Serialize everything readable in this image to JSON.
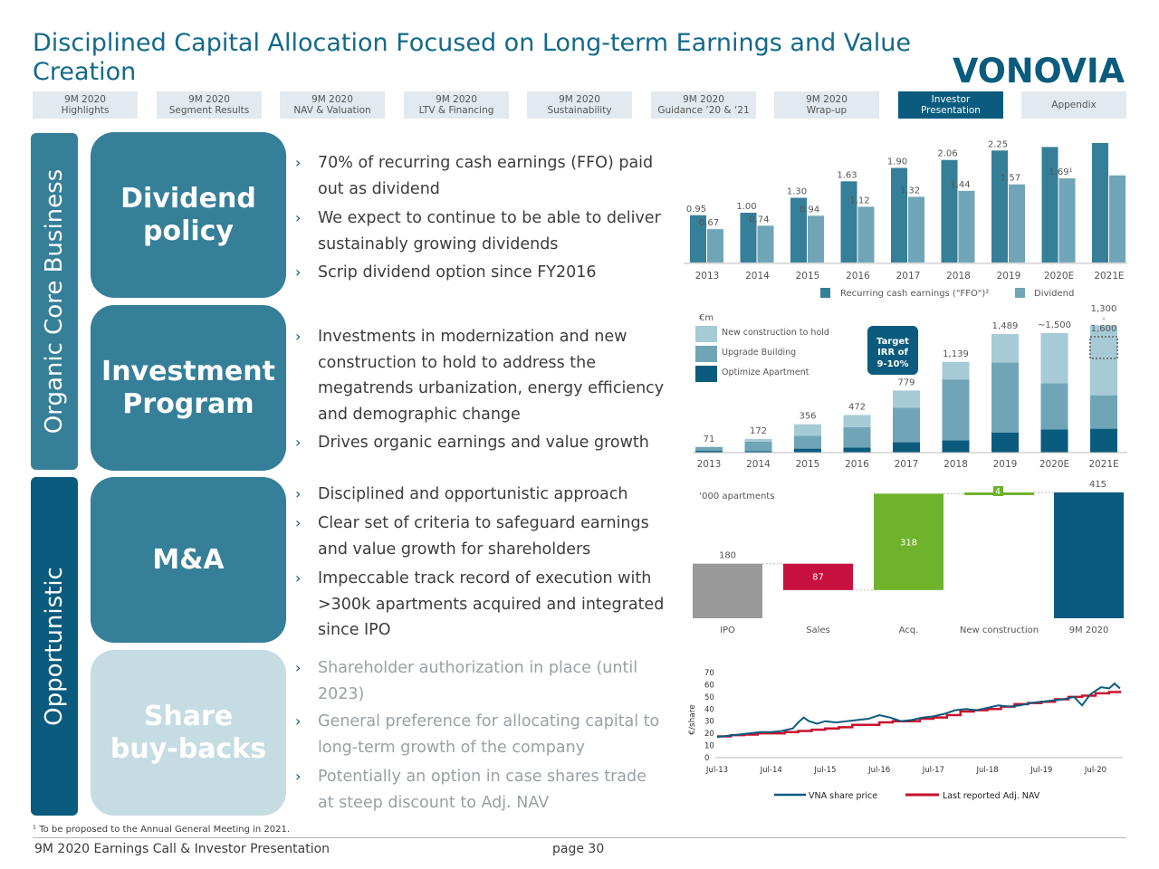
{
  "title": "Disciplined Capital Allocation Focused on Long-term Earnings and Value Creation",
  "logo_text": "VONOVIA",
  "nav_tabs": [
    {
      "line1": "9M 2020",
      "line2": "Highlights"
    },
    {
      "line1": "9M 2020",
      "line2": "Segment Results"
    },
    {
      "line1": "9M 2020",
      "line2": "NAV & Valuation"
    },
    {
      "line1": "9M 2020",
      "line2": "LTV & Financing"
    },
    {
      "line1": "9M 2020",
      "line2": "Sustainability"
    },
    {
      "line1": "9M 2020",
      "line2": "Guidance ’20 & ‘21"
    },
    {
      "line1": "9M 2020",
      "line2": "Wrap-up"
    },
    {
      "line1": "Investor",
      "line2": "Presentation",
      "active": true
    },
    {
      "line1": "Appendix",
      "line2": ""
    }
  ],
  "side_labels": {
    "organic": "Organic Core Business",
    "opportunistic": "Opportunistic"
  },
  "sections": {
    "dividend": {
      "label": "Dividend\npolicy",
      "bullets": [
        "70% of recurring cash earnings (FFO) paid out as dividend",
        "We expect to continue to be able to deliver sustainably growing dividends",
        "Scrip dividend option since FY2016"
      ]
    },
    "investment": {
      "label": "Investment\nProgram",
      "bullets": [
        "Investments in modernization and new construction to hold to address the megatrends urbanization, energy efficiency and demographic change",
        "Drives organic earnings and value growth"
      ]
    },
    "mna": {
      "label": "M&A",
      "bullets": [
        "Disciplined and opportunistic approach",
        "Clear set of criteria to safeguard earnings and value growth for shareholders",
        "Impeccable track record of execution with >300k apartments acquired and integrated since IPO"
      ]
    },
    "buyback": {
      "label": "Share\nbuy-backs",
      "bullets": [
        "Shareholder authorization in place (until 2023)",
        "General preference for allocating capital to long-term growth of the company",
        "Potentially an option in case shares trade at steep discount to Adj. NAV"
      ]
    }
  },
  "colors": {
    "dark_teal": "#0a5b7d",
    "mid_teal": "#357f98",
    "light_teal": "#6fa5b7",
    "pale_teal": "#a6cad6",
    "box_light": "#c5dce3",
    "green": "#6fb22b",
    "red": "#c8103e",
    "grey": "#999999",
    "title_blue": "#14698a"
  },
  "chart_data": [
    {
      "type": "bar",
      "categories": [
        "2013",
        "2014",
        "2015",
        "2016",
        "2017",
        "2018",
        "2019",
        "2020E",
        "2021E"
      ],
      "series": [
        {
          "name": "Recurring cash earnings (\"FFO\")²",
          "values": [
            0.95,
            1.0,
            1.3,
            1.63,
            1.9,
            2.06,
            2.25,
            null,
            null
          ],
          "labels": [
            "0.95",
            "1.00",
            "1.30",
            "1.63",
            "1.90",
            "2.06",
            "2.25",
            "",
            ""
          ]
        },
        {
          "name": "Dividend",
          "values": [
            0.67,
            0.74,
            0.94,
            1.12,
            1.32,
            1.44,
            1.57,
            1.69,
            null
          ],
          "labels": [
            "0.67",
            "0.74",
            "0.94",
            "1.12",
            "1.32",
            "1.44",
            "1.57",
            "1.69¹",
            ""
          ]
        }
      ],
      "estimate_ffo_2020E": 2.32,
      "estimate_ffo_2021E": 2.4,
      "estimate_div_2021E": 1.75
    },
    {
      "type": "bar",
      "stacked": true,
      "unit": "€m",
      "categories": [
        "2013",
        "2014",
        "2015",
        "2016",
        "2017",
        "2018",
        "2019",
        "2020E",
        "2021E"
      ],
      "series": [
        {
          "name": "Optimize Apartment",
          "values": [
            22,
            18,
            50,
            65,
            130,
            155,
            250,
            290,
            300
          ]
        },
        {
          "name": "Upgrade Building",
          "values": [
            49,
            120,
            160,
            255,
            435,
            764,
            880,
            580,
            420
          ]
        },
        {
          "name": "New construction to hold",
          "values": [
            0,
            34,
            146,
            152,
            214,
            220,
            359,
            630,
            880
          ]
        }
      ],
      "totals": [
        "71",
        "172",
        "356",
        "472",
        "779",
        "1,139",
        "1,489",
        "~1,500",
        "1,300\n-\n1,600"
      ],
      "target_box": {
        "line1": "Target",
        "line2": "IRR of",
        "line3": "9-10%"
      }
    },
    {
      "type": "bar",
      "waterfall": true,
      "unit": "‘000 apartments",
      "categories": [
        "IPO",
        "Sales",
        "Acq.",
        "New construction",
        "9M 2020"
      ],
      "values": [
        180,
        -87,
        318,
        4,
        415
      ],
      "labels": [
        "180",
        "87",
        "318",
        "4",
        "415"
      ]
    },
    {
      "type": "line",
      "ylabel": "€/share",
      "yticks": [
        "0",
        "10",
        "20",
        "30",
        "40",
        "50",
        "60",
        "70"
      ],
      "ylim": [
        0,
        70
      ],
      "xticks": [
        "Jul-13",
        "Jul-14",
        "Jul-15",
        "Jul-16",
        "Jul-17",
        "Jul-18",
        "Jul-19",
        "Jul-20"
      ],
      "series": [
        {
          "name": "VNA share price",
          "x": [
            2013.5,
            2013.7,
            2013.9,
            2014.1,
            2014.3,
            2014.5,
            2014.7,
            2014.9,
            2015.0,
            2015.1,
            2015.2,
            2015.35,
            2015.5,
            2015.7,
            2015.9,
            2016.1,
            2016.3,
            2016.5,
            2016.7,
            2016.9,
            2017.1,
            2017.3,
            2017.5,
            2017.7,
            2017.9,
            2018.1,
            2018.3,
            2018.5,
            2018.7,
            2018.9,
            2019.1,
            2019.3,
            2019.5,
            2019.7,
            2019.9,
            2020.1,
            2020.25,
            2020.4,
            2020.6,
            2020.75,
            2020.85,
            2020.95
          ],
          "values": [
            17,
            18,
            19,
            20,
            21,
            21,
            22,
            24,
            29,
            33,
            30,
            28,
            30,
            29,
            30,
            31,
            32,
            35,
            33,
            30,
            31,
            33,
            34,
            36,
            39,
            40,
            39,
            41,
            43,
            42,
            43,
            45,
            46,
            47,
            48,
            50,
            43,
            52,
            58,
            57,
            61,
            57
          ]
        },
        {
          "name": "Last reported Adj. NAV",
          "x": [
            2013.5,
            2013.75,
            2014.0,
            2014.25,
            2014.5,
            2014.75,
            2015.0,
            2015.25,
            2015.5,
            2015.75,
            2016.0,
            2016.25,
            2016.5,
            2016.75,
            2017.0,
            2017.25,
            2017.5,
            2017.75,
            2018.0,
            2018.25,
            2018.5,
            2018.75,
            2019.0,
            2019.25,
            2019.5,
            2019.75,
            2020.0,
            2020.25,
            2020.5,
            2020.75,
            2020.95
          ],
          "values": [
            17.5,
            18.5,
            19,
            20,
            20,
            21,
            22,
            23,
            24,
            25,
            27,
            27,
            29,
            30,
            30,
            32,
            33,
            35,
            38,
            39,
            40,
            42,
            44,
            45,
            46,
            48,
            50,
            51,
            53,
            54,
            55
          ]
        }
      ]
    }
  ],
  "footnote": "¹ To be proposed to the Annual General Meeting in 2021.",
  "footer": "9M 2020 Earnings Call & Investor Presentation",
  "page": "page 30"
}
